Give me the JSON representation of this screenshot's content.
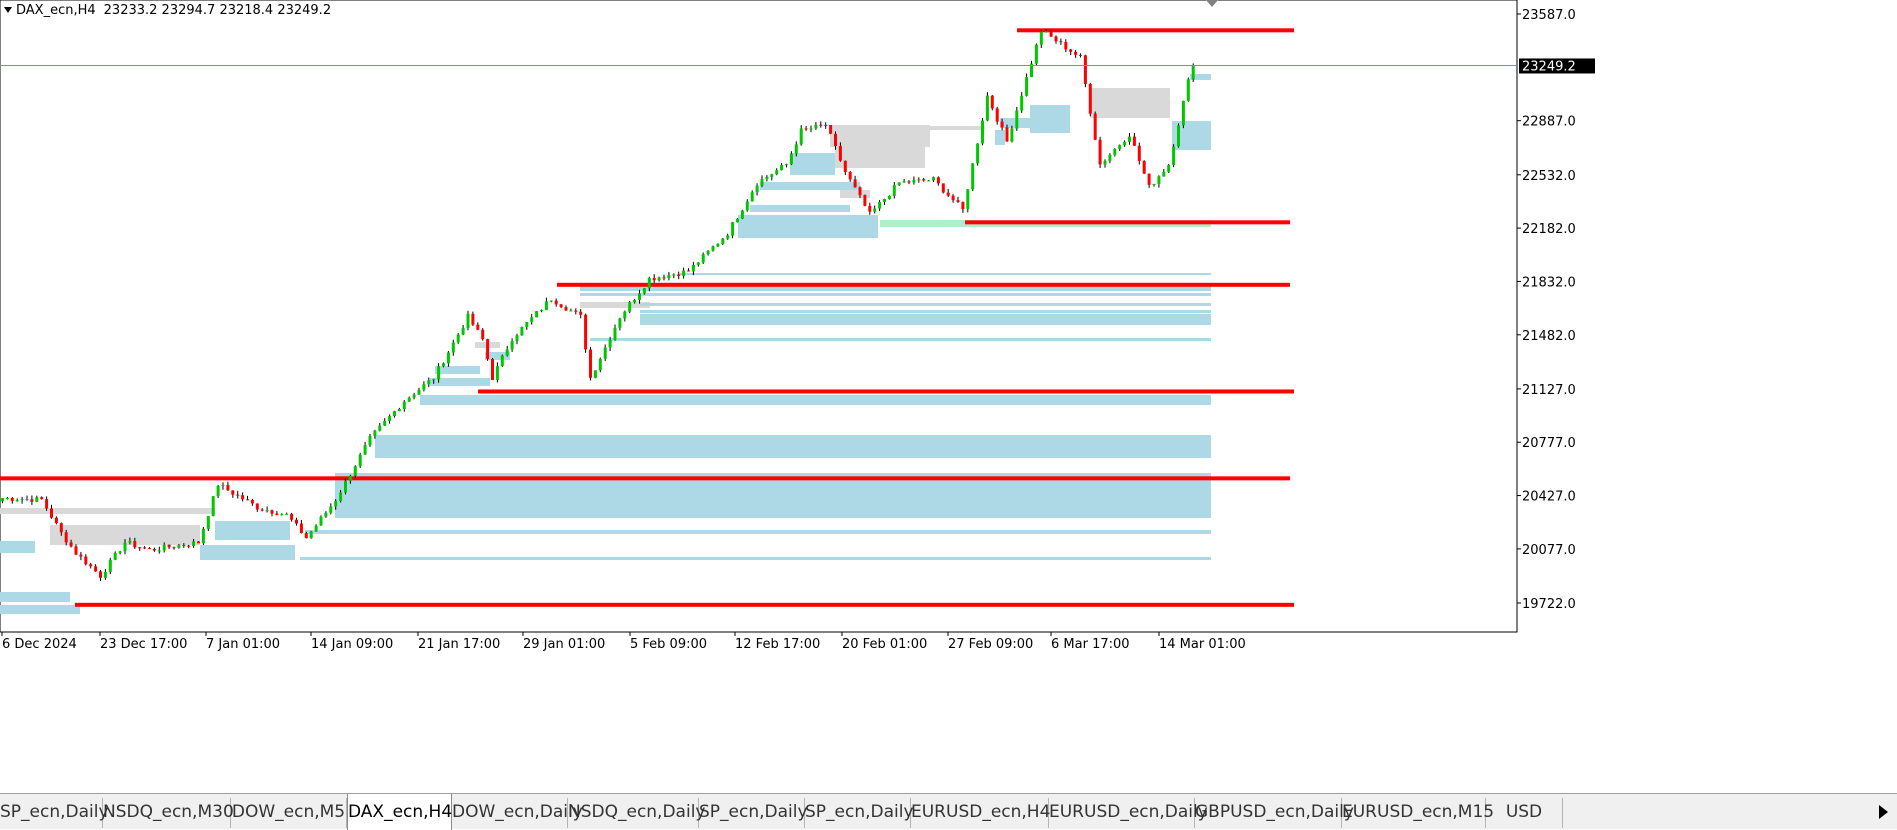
{
  "header": {
    "symbol": "DAX_ecn,H4",
    "ohlc": "23233.2 23294.7 23218.4 23249.2"
  },
  "chart_data": {
    "type": "candlestick",
    "symbol": "DAX_ecn",
    "timeframe": "H4",
    "y_ticks": [
      23587.0,
      22887.0,
      22532.0,
      22182.0,
      21832.0,
      21482.0,
      21127.0,
      20777.0,
      20427.0,
      20077.0,
      19722.0
    ],
    "y_tick_labels": [
      "23587.0",
      "22887.0",
      "22532.0",
      "22182.0",
      "21832.0",
      "21482.0",
      "21127.0",
      "20777.0",
      "20427.0",
      "20077.0",
      "19722.0"
    ],
    "current_price": 23249.2,
    "current_price_label": "23249.2",
    "x_labels": [
      "6 Dec 2024",
      "23 Dec 17:00",
      "7 Jan 01:00",
      "14 Jan 09:00",
      "21 Jan 17:00",
      "29 Jan 01:00",
      "5 Feb 09:00",
      "12 Feb 17:00",
      "20 Feb 01:00",
      "27 Feb 09:00",
      "6 Mar 17:00",
      "14 Mar 01:00"
    ],
    "candle_count": 245,
    "levels": [
      23480,
      22220,
      21810,
      21110,
      20540,
      19710
    ],
    "colors": {
      "up": "#00c800",
      "down": "#ff0000",
      "level": "#ff0000",
      "zone": "#add8e6",
      "gray_zone": "#d9d9d9",
      "green_zone": "#b0f0c8",
      "price_line": "#7f8fa6"
    }
  },
  "tabs": [
    {
      "label": "SP_ecn,Daily",
      "active": false
    },
    {
      "label": "NSDQ_ecn,M30",
      "active": false
    },
    {
      "label": "DOW_ecn,M5",
      "active": false
    },
    {
      "label": "DAX_ecn,H4",
      "active": true
    },
    {
      "label": "DOW_ecn,Daily",
      "active": false
    },
    {
      "label": "NSDQ_ecn,Daily",
      "active": false
    },
    {
      "label": "SP_ecn,Daily",
      "active": false
    },
    {
      "label": "SP_ecn,Daily",
      "active": false
    },
    {
      "label": "EURUSD_ecn,H4",
      "active": false
    },
    {
      "label": "EURUSD_ecn,Daily",
      "active": false
    },
    {
      "label": "GBPUSD_ecn,Daily",
      "active": false
    },
    {
      "label": "EURUSD_ecn,M15",
      "active": false
    },
    {
      "label": "USD",
      "active": false
    }
  ]
}
